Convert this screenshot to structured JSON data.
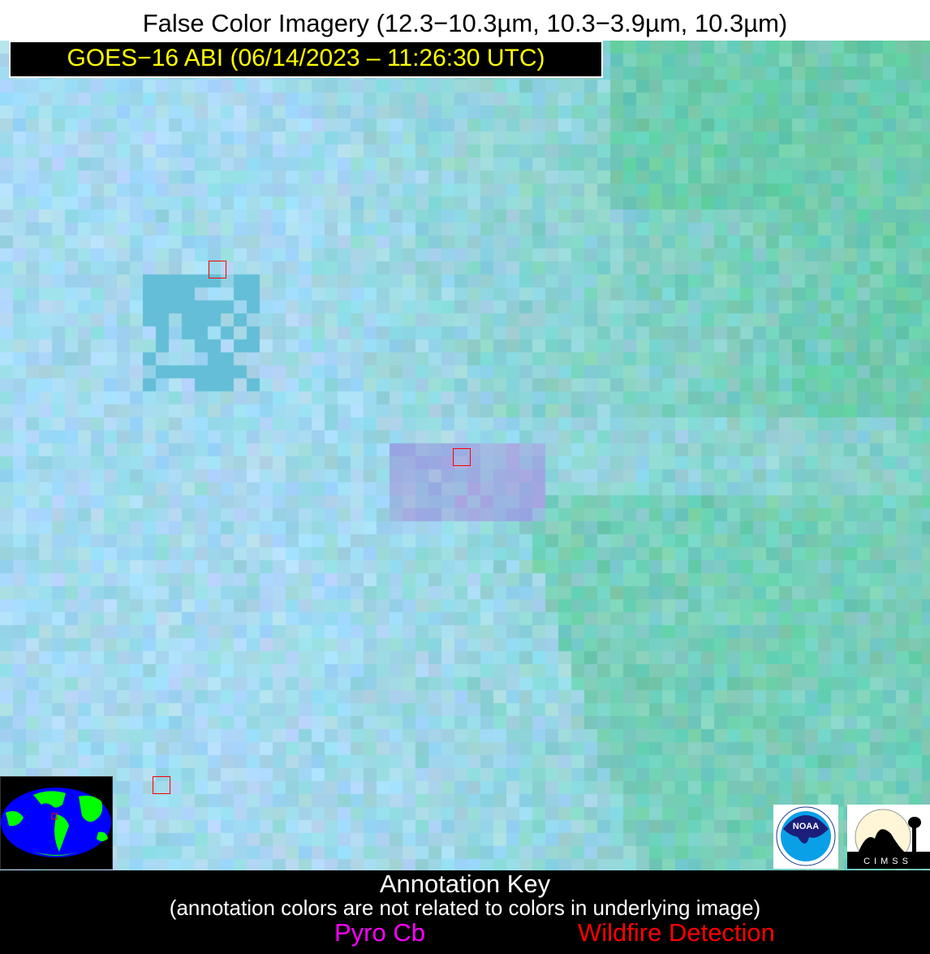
{
  "title": "False Color Imagery (12.3−10.3µm, 10.3−3.9µm, 10.3µm)",
  "satellite_label": "GOES−16 ABI (06/14/2023 – 11:26:30 UTC)",
  "detections": [
    {
      "type": "Wildfire Detection"
    },
    {
      "type": "Wildfire Detection"
    },
    {
      "type": "Wildfire Detection"
    }
  ],
  "logos": {
    "noaa": "NOAA",
    "cimss": "CIMSS"
  },
  "annotation_key": {
    "title": "Annotation Key",
    "note": "(annotation colors are not related to colors in underlying image)",
    "items": [
      {
        "label": "Pyro Cb",
        "color": "#ff00ff"
      },
      {
        "label": "Wildfire Detection",
        "color": "#ff0000"
      }
    ]
  },
  "colors": {
    "label_text": "#ffff00",
    "detection_box": "#ff0000",
    "globe_land": "#00ff00",
    "globe_ocean": "#0000ff"
  }
}
